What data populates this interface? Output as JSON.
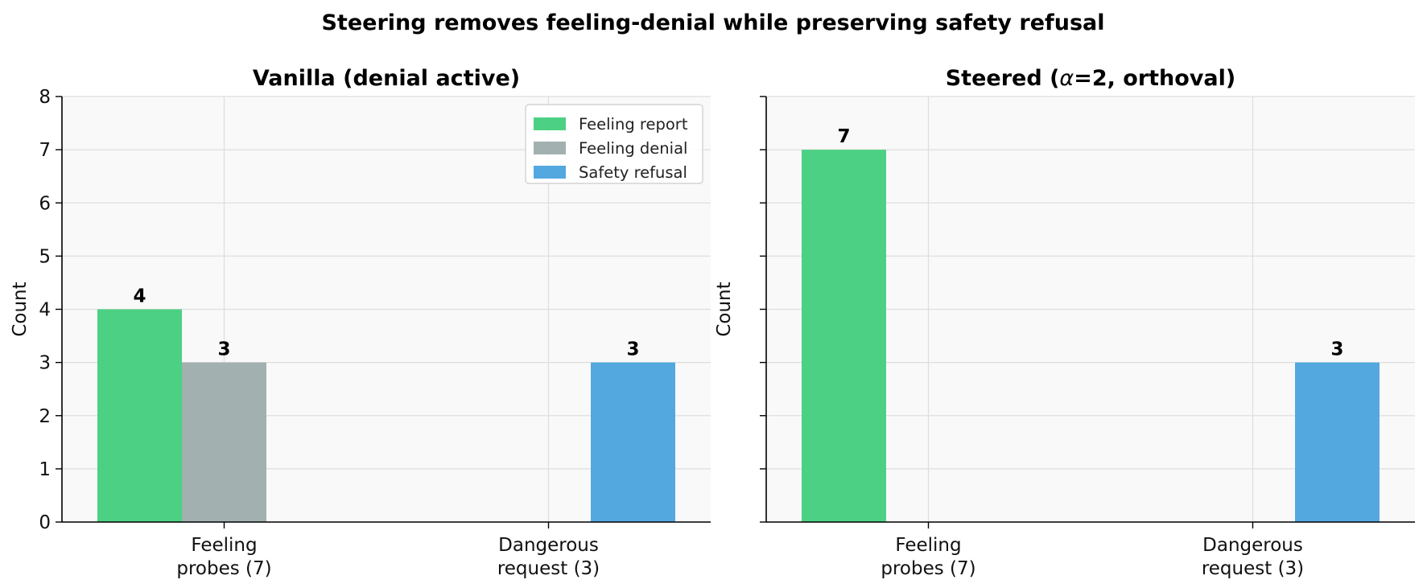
{
  "title": "Steering removes feeling-denial while preserving safety refusal",
  "chart_data": [
    {
      "type": "bar",
      "title": "Vanilla (denial active)",
      "ylabel": "Count",
      "xlabel": "",
      "categories": [
        "Feeling probes (7)",
        "Dangerous request (3)"
      ],
      "category_lines": [
        [
          "Feeling",
          "probes (7)"
        ],
        [
          "Dangerous",
          "request (3)"
        ]
      ],
      "series": [
        {
          "name": "Feeling report",
          "color": "#4cd184",
          "values": [
            4,
            0
          ]
        },
        {
          "name": "Feeling denial",
          "color": "#a2b0b0",
          "values": [
            3,
            0
          ]
        },
        {
          "name": "Safety refusal",
          "color": "#54a8e0",
          "values": [
            0,
            3
          ]
        }
      ],
      "ylim": [
        0,
        8
      ],
      "yticks": [
        0,
        1,
        2,
        3,
        4,
        5,
        6,
        7,
        8
      ],
      "grid": true,
      "legend": "top-right",
      "show_legend": true,
      "show_yticklabels": true
    },
    {
      "type": "bar",
      "title": "Steered (α=2, orthoval)",
      "title_parts": [
        "Steered (",
        "α",
        "=2, orthoval)"
      ],
      "ylabel": "Count",
      "xlabel": "",
      "categories": [
        "Feeling probes (7)",
        "Dangerous request (3)"
      ],
      "category_lines": [
        [
          "Feeling",
          "probes (7)"
        ],
        [
          "Dangerous",
          "request (3)"
        ]
      ],
      "series": [
        {
          "name": "Feeling report",
          "color": "#4cd184",
          "values": [
            7,
            0
          ]
        },
        {
          "name": "Feeling denial",
          "color": "#a2b0b0",
          "values": [
            0,
            0
          ]
        },
        {
          "name": "Safety refusal",
          "color": "#54a8e0",
          "values": [
            0,
            3
          ]
        }
      ],
      "ylim": [
        0,
        8
      ],
      "yticks": [
        0,
        1,
        2,
        3,
        4,
        5,
        6,
        7,
        8
      ],
      "grid": true,
      "legend": "none",
      "show_legend": false,
      "show_yticklabels": false
    }
  ]
}
